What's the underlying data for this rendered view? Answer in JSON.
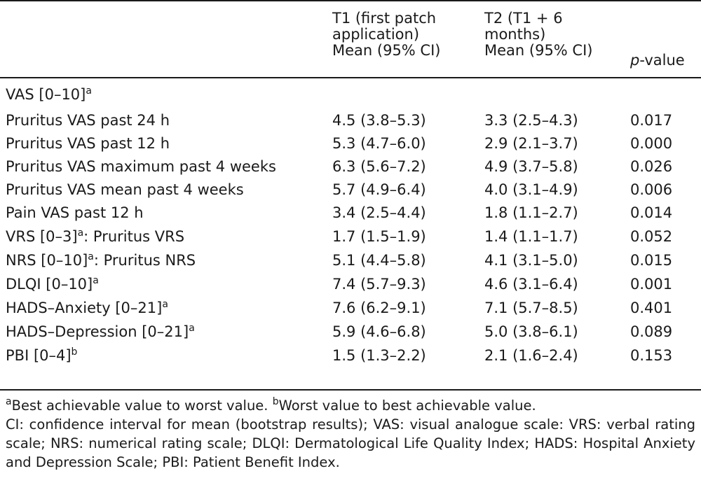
{
  "header": {
    "col0": "",
    "t1_line1": "T1 (first patch",
    "t1_line2": "application)",
    "t1_line3": "Mean (95% CI)",
    "t2_line1": "T2 (T1 + 6",
    "t2_line2": "months)",
    "t2_line3": "Mean (95% CI)",
    "p_italic": "p",
    "p_rest": "-value"
  },
  "section_vas": {
    "label": "VAS [0–10]",
    "sup": "a"
  },
  "rows": [
    {
      "label": "Pruritus VAS past 24 h",
      "sup": "",
      "suffix": "",
      "t1": "4.5 (3.8–5.3)",
      "t2": "3.3 (2.5–4.3)",
      "p": "0.017"
    },
    {
      "label": "Pruritus VAS past 12 h",
      "sup": "",
      "suffix": "",
      "t1": "5.3 (4.7–6.0)",
      "t2": "2.9 (2.1–3.7)",
      "p": "0.000"
    },
    {
      "label": "Pruritus VAS maximum past 4 weeks",
      "sup": "",
      "suffix": "",
      "t1": "6.3 (5.6–7.2)",
      "t2": "4.9 (3.7–5.8)",
      "p": "0.026"
    },
    {
      "label": "Pruritus VAS mean past 4 weeks",
      "sup": "",
      "suffix": "",
      "t1": "5.7 (4.9–6.4)",
      "t2": "4.0 (3.1–4.9)",
      "p": "0.006"
    },
    {
      "label": "Pain VAS past 12 h",
      "sup": "",
      "suffix": "",
      "t1": "3.4 (2.5–4.4)",
      "t2": "1.8 (1.1–2.7)",
      "p": "0.014"
    },
    {
      "label": "VRS [0–3]",
      "sup": "a",
      "suffix": ": Pruritus VRS",
      "t1": "1.7 (1.5–1.9)",
      "t2": "1.4 (1.1–1.7)",
      "p": "0.052"
    },
    {
      "label": "NRS [0–10]",
      "sup": "a",
      "suffix": ": Pruritus NRS",
      "t1": "5.1 (4.4–5.8)",
      "t2": "4.1 (3.1–5.0)",
      "p": "0.015"
    },
    {
      "label": "DLQI [0–10]",
      "sup": "a",
      "suffix": "",
      "t1": "7.4 (5.7–9.3)",
      "t2": "4.6 (3.1–6.4)",
      "p": "0.001"
    },
    {
      "label": "HADS–Anxiety [0–21]",
      "sup": "a",
      "suffix": "",
      "t1": "7.6 (6.2–9.1)",
      "t2": "7.1 (5.7–8.5)",
      "p": "0.401"
    },
    {
      "label": "HADS–Depression [0–21]",
      "sup": "a",
      "suffix": "",
      "t1": "5.9 (4.6–6.8)",
      "t2": "5.0 (3.8–6.1)",
      "p": "0.089"
    },
    {
      "label": "PBI [0–4]",
      "sup": "b",
      "suffix": "",
      "t1": "1.5 (1.3–2.2)",
      "t2": "2.1 (1.6–2.4)",
      "p": "0.153"
    }
  ],
  "footnotes": {
    "a_sup": "a",
    "a_text": "Best achievable value to worst value. ",
    "b_sup": "b",
    "b_text": "Worst value to best achievable value.",
    "abbreviations": "CI: confidence interval for mean (bootstrap results); VAS: visual analogue scale: VRS: verbal rating scale; NRS: numerical rating scale; DLQI: Dermatological Life Quality Index; HADS: Hospital Anxiety and Depression Scale; PBI: Patient Benefit Index."
  }
}
